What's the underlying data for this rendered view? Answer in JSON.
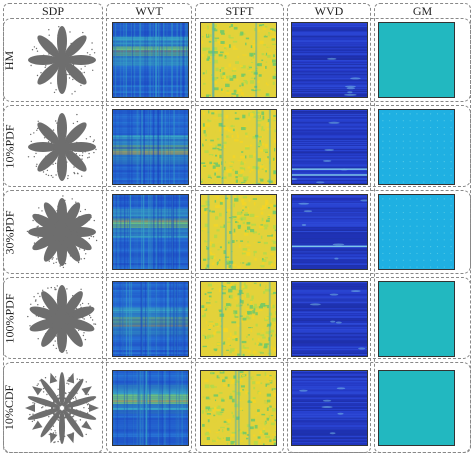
{
  "columns": [
    "SDP",
    "WVT",
    "STFT",
    "WVD",
    "GM"
  ],
  "rows": [
    {
      "label": "HM"
    },
    {
      "label": "10%PDF"
    },
    {
      "label": "30%PDF"
    },
    {
      "label": "100%PDF"
    },
    {
      "label": "10%CDF"
    }
  ],
  "palette": {
    "wvt": [
      "#1a3fbf",
      "#2a7ad8",
      "#3cb0c8",
      "#76cf7a",
      "#d8d83a"
    ],
    "stft": [
      "#6cc96a",
      "#b4d94a",
      "#e3d23a",
      "#f5d527",
      "#3aa8c0"
    ],
    "wvd": [
      "#1c2d9a",
      "#2338c8",
      "#3556e0",
      "#7ec6e8"
    ],
    "gm": [
      "#22b8c0",
      "#1fb0e2"
    ],
    "sdp": "#6e6e6e"
  }
}
